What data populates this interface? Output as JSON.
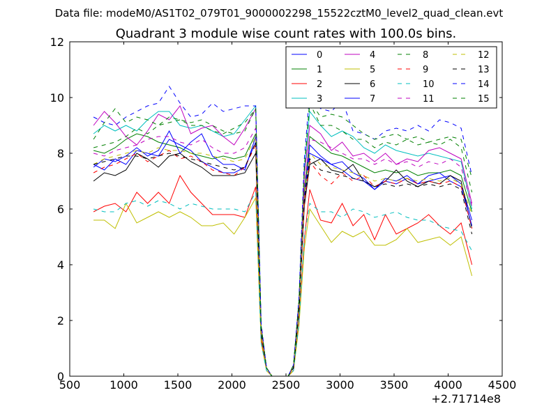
{
  "chart_data": {
    "type": "line",
    "suptitle": "Data file: modeM0/AS1T02_079T01_9000002298_15522cztM0_level2_quad_clean.evt",
    "title": "Quadrant 3 module wise count rates with 100.0s bins.",
    "xlabel": "",
    "ylabel": "",
    "x_offset_label": "+2.71714e8",
    "xlim": [
      500,
      4500
    ],
    "ylim": [
      0,
      12
    ],
    "xticks": [
      500,
      1000,
      1500,
      2000,
      2500,
      3000,
      3500,
      4000,
      4500
    ],
    "yticks": [
      0,
      2,
      4,
      6,
      8,
      10,
      12
    ],
    "legend_position": "top-right",
    "x": [
      720,
      820,
      920,
      1020,
      1120,
      1220,
      1320,
      1420,
      1520,
      1620,
      1720,
      1820,
      1920,
      2020,
      2120,
      2220,
      2270,
      2320,
      2370,
      2420,
      2470,
      2520,
      2570,
      2620,
      2670,
      2720,
      2820,
      2920,
      3020,
      3120,
      3220,
      3320,
      3420,
      3520,
      3620,
      3720,
      3820,
      3920,
      4020,
      4120,
      4220
    ],
    "series": [
      {
        "name": "0",
        "color": "#0000ff",
        "dash": "solid",
        "values": [
          7.6,
          7.4,
          7.8,
          7.6,
          8.1,
          8.0,
          7.9,
          8.5,
          8.3,
          8.1,
          7.7,
          7.5,
          7.3,
          7.3,
          7.5,
          8.4,
          1.6,
          0.3,
          0.0,
          0.0,
          0.0,
          0.0,
          0.3,
          2.4,
          6.4,
          8.3,
          7.9,
          7.6,
          7.7,
          7.3,
          7.1,
          6.7,
          7.1,
          7.0,
          7.2,
          6.9,
          7.0,
          7.1,
          7.2,
          6.9,
          5.6
        ]
      },
      {
        "name": "1",
        "color": "#008000",
        "dash": "solid",
        "values": [
          8.1,
          8.0,
          8.2,
          8.5,
          8.7,
          8.6,
          8.4,
          8.3,
          8.2,
          8.0,
          7.9,
          7.8,
          7.9,
          7.8,
          7.9,
          8.7,
          1.6,
          0.3,
          0.0,
          0.0,
          0.0,
          0.0,
          0.3,
          2.4,
          6.6,
          8.6,
          8.3,
          8.0,
          7.9,
          7.7,
          7.5,
          7.3,
          7.4,
          7.3,
          7.4,
          7.2,
          7.3,
          7.3,
          7.4,
          7.2,
          5.9
        ]
      },
      {
        "name": "2",
        "color": "#ff0000",
        "dash": "solid",
        "values": [
          5.9,
          6.1,
          6.2,
          5.9,
          6.6,
          6.2,
          6.6,
          6.2,
          7.2,
          6.6,
          6.2,
          5.8,
          5.8,
          5.8,
          5.7,
          6.8,
          1.3,
          0.2,
          0.0,
          0.0,
          0.0,
          0.0,
          0.2,
          1.9,
          4.9,
          6.7,
          5.6,
          5.5,
          6.2,
          5.4,
          5.8,
          4.9,
          5.8,
          5.1,
          5.3,
          5.5,
          5.8,
          5.4,
          5.1,
          5.5,
          4.0
        ]
      },
      {
        "name": "3",
        "color": "#00bfbf",
        "dash": "solid",
        "values": [
          8.7,
          9.0,
          8.8,
          9.0,
          8.8,
          9.2,
          9.5,
          9.5,
          9.0,
          8.9,
          9.0,
          8.8,
          8.6,
          8.7,
          9.2,
          9.7,
          1.8,
          0.3,
          0.0,
          0.0,
          0.0,
          0.0,
          0.4,
          2.7,
          7.4,
          9.5,
          9.0,
          8.6,
          8.8,
          8.6,
          8.2,
          8.0,
          8.3,
          8.1,
          8.0,
          7.9,
          8.0,
          7.9,
          7.8,
          7.7,
          6.0
        ]
      },
      {
        "name": "4",
        "color": "#bf00bf",
        "dash": "solid",
        "values": [
          9.0,
          9.5,
          9.1,
          8.6,
          8.3,
          8.8,
          9.4,
          9.2,
          9.7,
          8.7,
          8.9,
          9.0,
          8.6,
          8.3,
          8.9,
          9.6,
          1.8,
          0.3,
          0.0,
          0.0,
          0.0,
          0.0,
          0.4,
          2.7,
          7.2,
          9.0,
          8.7,
          8.1,
          8.4,
          7.9,
          8.0,
          7.7,
          8.0,
          7.6,
          7.8,
          7.7,
          8.1,
          8.2,
          8.0,
          7.8,
          6.2
        ]
      },
      {
        "name": "5",
        "color": "#bfbf00",
        "dash": "solid",
        "values": [
          5.6,
          5.6,
          5.3,
          6.2,
          5.5,
          5.7,
          5.9,
          5.7,
          5.9,
          5.7,
          5.4,
          5.4,
          5.5,
          5.1,
          5.7,
          6.4,
          1.2,
          0.2,
          0.0,
          0.0,
          0.0,
          0.0,
          0.2,
          1.8,
          4.6,
          6.0,
          5.4,
          4.8,
          5.2,
          5.0,
          5.2,
          4.7,
          4.7,
          4.9,
          5.3,
          4.8,
          4.9,
          5.0,
          4.7,
          5.0,
          3.6
        ]
      },
      {
        "name": "6",
        "color": "#000000",
        "dash": "solid",
        "values": [
          7.0,
          7.3,
          7.2,
          7.4,
          8.0,
          7.8,
          7.5,
          7.9,
          8.0,
          7.7,
          7.5,
          7.2,
          7.2,
          7.2,
          7.3,
          8.0,
          1.5,
          0.3,
          0.0,
          0.0,
          0.0,
          0.0,
          0.3,
          2.3,
          6.1,
          7.6,
          7.8,
          7.4,
          7.3,
          7.6,
          7.0,
          6.8,
          7.0,
          7.4,
          7.0,
          6.8,
          7.0,
          6.9,
          7.2,
          7.0,
          5.3
        ]
      },
      {
        "name": "7",
        "color": "#0000ff",
        "dash": "solid",
        "values": [
          7.5,
          7.8,
          7.7,
          7.9,
          8.2,
          7.9,
          8.1,
          8.8,
          8.0,
          8.4,
          8.7,
          7.9,
          7.6,
          7.6,
          7.4,
          8.6,
          1.6,
          0.3,
          0.0,
          0.0,
          0.0,
          0.0,
          0.3,
          2.5,
          6.4,
          8.0,
          7.8,
          7.6,
          7.4,
          7.1,
          7.0,
          6.7,
          7.0,
          6.9,
          7.1,
          6.9,
          7.2,
          7.3,
          7.0,
          6.8,
          5.4
        ]
      },
      {
        "name": "8",
        "color": "#008000",
        "dash": "dashed",
        "values": [
          8.2,
          8.3,
          8.4,
          8.6,
          8.9,
          8.7,
          9.0,
          9.1,
          9.2,
          9.0,
          9.0,
          8.8,
          8.7,
          8.9,
          9.1,
          9.6,
          1.8,
          0.3,
          0.0,
          0.0,
          0.0,
          0.0,
          0.4,
          2.7,
          7.4,
          9.8,
          9.0,
          9.0,
          8.8,
          8.5,
          8.5,
          8.2,
          8.4,
          8.3,
          8.5,
          8.3,
          8.4,
          8.3,
          8.5,
          8.2,
          6.6
        ]
      },
      {
        "name": "9",
        "color": "#ff0000",
        "dash": "dashed",
        "values": [
          7.3,
          7.5,
          7.6,
          7.8,
          8.0,
          7.7,
          7.9,
          8.1,
          7.8,
          7.9,
          7.7,
          7.4,
          7.3,
          7.2,
          7.5,
          8.3,
          1.5,
          0.3,
          0.0,
          0.0,
          0.0,
          0.0,
          0.3,
          2.3,
          6.2,
          7.7,
          7.2,
          6.9,
          7.3,
          7.0,
          7.2,
          6.8,
          7.0,
          6.9,
          7.1,
          6.9,
          7.0,
          6.9,
          7.0,
          6.8,
          5.3
        ]
      },
      {
        "name": "10",
        "color": "#00bfbf",
        "dash": "dashed",
        "values": [
          6.0,
          5.9,
          5.9,
          6.2,
          6.3,
          6.1,
          6.3,
          6.2,
          6.0,
          6.2,
          6.1,
          6.0,
          6.0,
          6.0,
          5.9,
          6.6,
          1.2,
          0.2,
          0.0,
          0.0,
          0.0,
          0.0,
          0.2,
          1.9,
          5.0,
          6.2,
          5.9,
          5.9,
          5.7,
          6.0,
          5.9,
          5.7,
          5.8,
          5.9,
          5.7,
          5.6,
          5.6,
          5.4,
          5.3,
          5.2,
          4.5
        ]
      },
      {
        "name": "11",
        "color": "#bf00bf",
        "dash": "dashed",
        "values": [
          8.0,
          7.9,
          8.1,
          8.2,
          8.3,
          8.5,
          8.6,
          8.6,
          8.4,
          8.3,
          8.5,
          8.2,
          8.0,
          8.0,
          8.2,
          8.9,
          1.7,
          0.3,
          0.0,
          0.0,
          0.0,
          0.0,
          0.3,
          2.5,
          6.8,
          8.5,
          8.4,
          8.2,
          8.0,
          7.8,
          7.8,
          7.6,
          7.8,
          7.6,
          7.7,
          7.5,
          7.7,
          7.6,
          7.8,
          7.5,
          6.1
        ]
      },
      {
        "name": "12",
        "color": "#bfbf00",
        "dash": "dashed",
        "values": [
          7.6,
          7.8,
          7.9,
          8.0,
          8.1,
          8.0,
          8.2,
          8.1,
          8.1,
          8.0,
          8.0,
          7.9,
          7.8,
          7.7,
          7.8,
          8.6,
          1.6,
          0.3,
          0.0,
          0.0,
          0.0,
          0.0,
          0.3,
          2.4,
          6.5,
          8.0,
          7.6,
          7.5,
          7.4,
          7.3,
          7.2,
          7.0,
          7.1,
          7.0,
          7.1,
          7.0,
          7.1,
          7.0,
          7.1,
          6.9,
          5.8
        ]
      },
      {
        "name": "13",
        "color": "#000000",
        "dash": "dashed",
        "values": [
          7.6,
          7.7,
          7.8,
          7.9,
          7.9,
          7.8,
          7.9,
          8.0,
          7.9,
          7.8,
          7.7,
          7.6,
          7.5,
          7.4,
          7.5,
          8.4,
          1.6,
          0.3,
          0.0,
          0.0,
          0.0,
          0.0,
          0.3,
          2.3,
          6.3,
          7.8,
          7.4,
          7.3,
          7.2,
          7.1,
          7.0,
          6.8,
          6.9,
          6.8,
          6.9,
          6.8,
          6.9,
          6.8,
          6.9,
          6.7,
          5.1
        ]
      },
      {
        "name": "14",
        "color": "#0000ff",
        "dash": "dashed",
        "values": [
          9.3,
          9.1,
          9.0,
          9.3,
          9.5,
          9.7,
          9.8,
          10.4,
          9.8,
          9.3,
          9.4,
          9.8,
          9.5,
          9.6,
          9.7,
          9.7,
          1.9,
          0.3,
          0.0,
          0.0,
          0.0,
          0.0,
          0.4,
          2.8,
          7.8,
          10.2,
          9.6,
          9.5,
          9.9,
          8.8,
          8.7,
          8.5,
          8.8,
          8.9,
          8.8,
          9.0,
          8.8,
          9.2,
          9.1,
          8.9,
          7.2
        ]
      },
      {
        "name": "15",
        "color": "#008000",
        "dash": "dashed",
        "values": [
          8.5,
          9.1,
          9.6,
          9.1,
          9.3,
          9.2,
          9.0,
          9.3,
          9.2,
          9.1,
          9.2,
          9.0,
          8.8,
          8.7,
          8.8,
          9.6,
          1.8,
          0.3,
          0.0,
          0.0,
          0.0,
          0.0,
          0.4,
          2.7,
          7.5,
          9.9,
          9.3,
          9.4,
          9.3,
          9.0,
          8.7,
          8.5,
          8.6,
          8.7,
          8.5,
          8.6,
          8.4,
          8.5,
          8.6,
          8.5,
          7.1
        ]
      }
    ]
  }
}
